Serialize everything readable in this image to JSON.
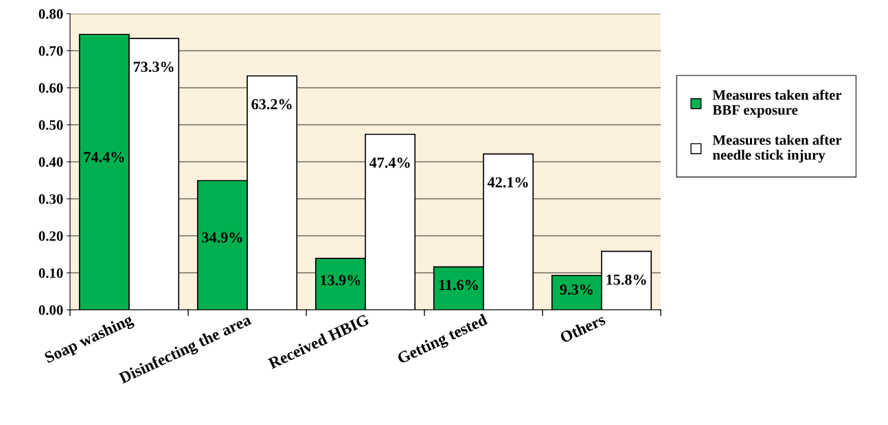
{
  "chart_data": {
    "type": "bar",
    "categories": [
      "Soap washing",
      "Disinfecting the area",
      "Received HBIG",
      "Getting tested",
      "Others"
    ],
    "series": [
      {
        "name": "Measures taken after BBF exposure",
        "color": "#00b050",
        "values": [
          0.744,
          0.349,
          0.139,
          0.116,
          0.093
        ],
        "value_labels": [
          "74.4%",
          "34.9%",
          "13.9%",
          "11.6%",
          "9.3%"
        ]
      },
      {
        "name": "Measures taken after needle stick injury",
        "color": "#ffffff",
        "values": [
          0.733,
          0.632,
          0.474,
          0.421,
          0.158
        ],
        "value_labels": [
          "73.3%",
          "63.2%",
          "47.4%",
          "42.1%",
          "15.8%"
        ]
      }
    ],
    "ylim": [
      0,
      0.8
    ],
    "yticks": [
      {
        "value": 0,
        "label": "0.00"
      },
      {
        "value": 0.1,
        "label": "0.10"
      },
      {
        "value": 0.2,
        "label": "0.20"
      },
      {
        "value": 0.3,
        "label": "0.30"
      },
      {
        "value": 0.4,
        "label": "0.40"
      },
      {
        "value": 0.5,
        "label": "0.50"
      },
      {
        "value": 0.6,
        "label": "0.60"
      },
      {
        "value": 0.7,
        "label": "0.70"
      },
      {
        "value": 0.8,
        "label": "0.80"
      }
    ],
    "grid": "y",
    "legend": "right"
  }
}
